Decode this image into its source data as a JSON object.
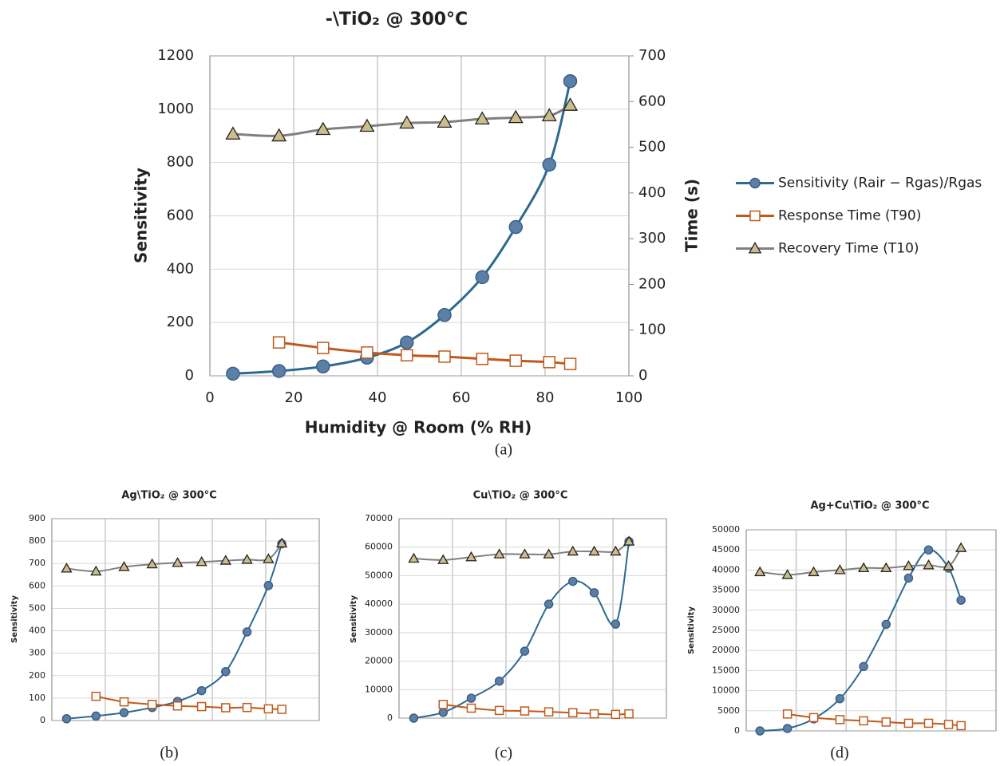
{
  "chart_data": [
    {
      "type": "line",
      "title": "-\\TiO₂ @ 300°C",
      "caption": "(a)",
      "x_label": "Humidity @ Room (% RH)",
      "y_label": "Sensitivity",
      "y2_label": "Time (s)",
      "x": [
        5.5,
        16.5,
        27,
        37.5,
        47,
        56,
        65,
        73,
        81,
        86
      ],
      "xlim": [
        0,
        100
      ],
      "xticks": [
        0,
        20,
        40,
        60,
        80,
        100
      ],
      "xtick_labels": true,
      "ylim": [
        0,
        1200
      ],
      "yticks": [
        0,
        200,
        400,
        600,
        800,
        1000,
        1200
      ],
      "y2lim": [
        0,
        700
      ],
      "y2ticks": [
        0,
        100,
        200,
        300,
        400,
        500,
        600,
        700
      ],
      "grid": true,
      "legend": "right",
      "series": [
        {
          "name": "Sensitivity (Rair − Rgas)/Rgas",
          "color": "#2d6a8f",
          "marker": "circle",
          "values": [
            8,
            18,
            35,
            68,
            125,
            228,
            370,
            558,
            792,
            1105
          ]
        },
        {
          "name": "Response Time (T90)",
          "color": "#c05a1c",
          "marker": "square",
          "axis": "y2",
          "values": [
            null,
            73,
            61,
            51,
            45,
            42,
            37,
            33,
            30,
            26
          ]
        },
        {
          "name": "Recovery Time (T10)",
          "color": "#808080",
          "marker": "triangle",
          "axis": "y2",
          "values": [
            529,
            525,
            539,
            546,
            553,
            555,
            562,
            565,
            569,
            592
          ]
        }
      ]
    },
    {
      "type": "line",
      "title": "Ag\\TiO₂ @ 300°C",
      "caption": "(b)",
      "y_label": "Sensitivity",
      "x": [
        5.5,
        16.5,
        27,
        37.5,
        47,
        56,
        65,
        73,
        81,
        86
      ],
      "xlim": [
        0,
        100
      ],
      "xticks": [
        0,
        20,
        40,
        60,
        80,
        100
      ],
      "xtick_labels": false,
      "ylim": [
        0,
        900
      ],
      "yticks": [
        0,
        100,
        200,
        300,
        400,
        500,
        600,
        700,
        800,
        900
      ],
      "grid": true,
      "series": [
        {
          "color": "#2d6a8f",
          "marker": "circle",
          "values": [
            8,
            20,
            35,
            58,
            85,
            133,
            218,
            395,
            602,
            788
          ]
        },
        {
          "color": "#c05a1c",
          "marker": "square",
          "values": [
            null,
            108,
            83,
            72,
            65,
            62,
            57,
            58,
            52,
            50
          ]
        },
        {
          "color": "#808080",
          "marker": "triangle",
          "values": [
            678,
            665,
            685,
            697,
            703,
            707,
            713,
            717,
            720,
            790
          ]
        }
      ]
    },
    {
      "type": "line",
      "title": "Cu\\TiO₂ @ 300°C",
      "caption": "(c)",
      "y_label": "Sensitivity",
      "x": [
        5.5,
        16.5,
        27,
        37.5,
        47,
        56,
        65,
        73,
        81,
        86
      ],
      "xlim": [
        0,
        100
      ],
      "xticks": [
        0,
        20,
        40,
        60,
        80,
        100
      ],
      "xtick_labels": false,
      "ylim": [
        0,
        70000
      ],
      "yticks": [
        0,
        10000,
        20000,
        30000,
        40000,
        50000,
        60000,
        70000
      ],
      "grid": true,
      "series": [
        {
          "color": "#2d6a8f",
          "marker": "circle",
          "values": [
            0,
            2000,
            7000,
            13000,
            23500,
            40000,
            48000,
            44000,
            33000,
            62000
          ]
        },
        {
          "color": "#c05a1c",
          "marker": "square",
          "values": [
            null,
            4800,
            3500,
            2700,
            2500,
            2200,
            1900,
            1500,
            1300,
            1500
          ]
        },
        {
          "color": "#808080",
          "marker": "triangle",
          "values": [
            56000,
            55500,
            56500,
            57500,
            57500,
            57500,
            58500,
            58500,
            58500,
            62000
          ]
        }
      ]
    },
    {
      "type": "line",
      "title": "Ag+Cu\\TiO₂ @ 300°C",
      "caption": "(d)",
      "y_label": "Sensitivity",
      "x": [
        5.5,
        16.5,
        27,
        37.5,
        47,
        56,
        65,
        73,
        81,
        86
      ],
      "xlim": [
        0,
        100
      ],
      "xticks": [
        0,
        20,
        40,
        60,
        80,
        100
      ],
      "xtick_labels": false,
      "ylim": [
        0,
        50000
      ],
      "yticks": [
        0,
        5000,
        10000,
        15000,
        20000,
        25000,
        30000,
        35000,
        40000,
        45000,
        50000
      ],
      "grid": true,
      "series": [
        {
          "color": "#2d6a8f",
          "marker": "circle",
          "values": [
            0,
            600,
            3000,
            8000,
            16000,
            26500,
            38000,
            45000,
            40500,
            32500
          ]
        },
        {
          "color": "#c05a1c",
          "marker": "square",
          "values": [
            null,
            4200,
            3300,
            2800,
            2500,
            2200,
            1900,
            1900,
            1600,
            1300
          ]
        },
        {
          "color": "#808080",
          "marker": "triangle",
          "values": [
            39500,
            38800,
            39500,
            40000,
            40500,
            40500,
            41000,
            41200,
            41000,
            45500
          ]
        }
      ]
    }
  ]
}
